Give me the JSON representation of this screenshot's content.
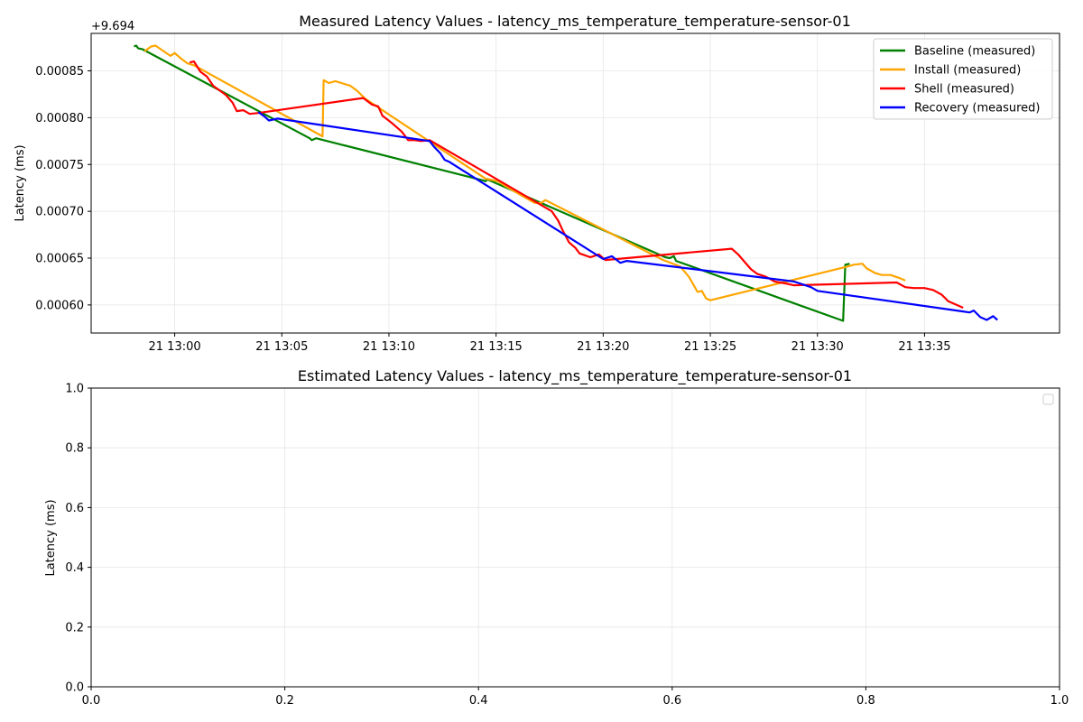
{
  "chart_data": [
    {
      "type": "line",
      "title": "Measured Latency Values - latency_ms_temperature_temperature-sensor-01",
      "ylabel": "Latency (ms)",
      "xlabel": "",
      "y_offset_label": "+9.694",
      "x_ticks": [
        "21 13:00",
        "21 13:05",
        "21 13:10",
        "21 13:15",
        "21 13:20",
        "21 13:25",
        "21 13:30",
        "21 13:35"
      ],
      "y_ticks": [
        "0.00060",
        "0.00065",
        "0.00070",
        "0.00075",
        "0.00080",
        "0.00085"
      ],
      "xlim": [
        "12:56:06",
        "13:41:18"
      ],
      "ylim": [
        0.00057,
        0.00089
      ],
      "grid": true,
      "legend_position": "top-right",
      "series": [
        {
          "name": "Baseline (measured)",
          "color": "#008000",
          "points": [
            [
              "12:58:06",
              0.000876
            ],
            [
              "12:58:12",
              0.000877
            ],
            [
              "12:58:18",
              0.000874
            ],
            [
              "12:58:30",
              0.000873
            ],
            [
              "13:06:18",
              0.000778
            ],
            [
              "13:06:24",
              0.000776
            ],
            [
              "13:06:36",
              0.000778
            ],
            [
              "13:14:24",
              0.000733
            ],
            [
              "13:14:30",
              0.000732
            ],
            [
              "13:14:36",
              0.000734
            ],
            [
              "13:22:54",
              0.000651
            ],
            [
              "13:23:06",
              0.00065
            ],
            [
              "13:23:18",
              0.000652
            ],
            [
              "13:23:24",
              0.000647
            ],
            [
              "13:31:12",
              0.000583
            ],
            [
              "13:31:18",
              0.000643
            ],
            [
              "13:31:30",
              0.000644
            ]
          ]
        },
        {
          "name": "Install (measured)",
          "color": "#ffa500",
          "points": [
            [
              "12:58:36",
              0.000871
            ],
            [
              "12:58:54",
              0.000876
            ],
            [
              "12:59:06",
              0.000877
            ],
            [
              "12:59:48",
              0.000866
            ],
            [
              "13:00:00",
              0.000869
            ],
            [
              "13:00:18",
              0.000863
            ],
            [
              "13:00:36",
              0.000858
            ],
            [
              "13:00:54",
              0.000856
            ],
            [
              "13:06:54",
              0.00078
            ],
            [
              "13:06:57",
              0.00084
            ],
            [
              "13:07:12",
              0.000837
            ],
            [
              "13:07:30",
              0.000839
            ],
            [
              "13:08:12",
              0.000834
            ],
            [
              "13:08:30",
              0.000829
            ],
            [
              "13:08:54",
              0.00082
            ],
            [
              "13:14:30",
              0.000735
            ],
            [
              "13:15:06",
              0.000732
            ],
            [
              "13:15:30",
              0.000726
            ],
            [
              "13:16:06",
              0.000718
            ],
            [
              "13:16:48",
              0.000709
            ],
            [
              "13:17:06",
              0.000709
            ],
            [
              "13:17:18",
              0.000712
            ],
            [
              "13:22:48",
              0.000648
            ],
            [
              "13:23:36",
              0.000641
            ],
            [
              "13:24:00",
              0.00063
            ],
            [
              "13:24:12",
              0.000622
            ],
            [
              "13:24:24",
              0.000614
            ],
            [
              "13:24:36",
              0.000615
            ],
            [
              "13:24:48",
              0.000607
            ],
            [
              "13:25:00",
              0.000605
            ],
            [
              "13:31:24",
              0.000641
            ],
            [
              "13:31:42",
              0.000643
            ],
            [
              "13:32:06",
              0.000644
            ],
            [
              "13:32:18",
              0.000639
            ],
            [
              "13:32:42",
              0.000634
            ],
            [
              "13:33:00",
              0.000632
            ],
            [
              "13:33:24",
              0.000632
            ],
            [
              "13:33:48",
              0.000629
            ],
            [
              "13:34:06",
              0.000626
            ]
          ]
        },
        {
          "name": "Shell (measured)",
          "color": "#ff0000",
          "points": [
            [
              "13:00:42",
              0.000859
            ],
            [
              "13:00:54",
              0.00086
            ],
            [
              "13:01:12",
              0.000849
            ],
            [
              "13:01:30",
              0.000844
            ],
            [
              "13:01:48",
              0.000834
            ],
            [
              "13:02:06",
              0.000829
            ],
            [
              "13:02:24",
              0.000824
            ],
            [
              "13:02:42",
              0.000816
            ],
            [
              "13:02:54",
              0.000807
            ],
            [
              "13:03:12",
              0.000808
            ],
            [
              "13:03:30",
              0.000804
            ],
            [
              "13:03:54",
              0.000805
            ],
            [
              "13:08:48",
              0.000821
            ],
            [
              "13:09:12",
              0.000814
            ],
            [
              "13:09:30",
              0.000812
            ],
            [
              "13:09:42",
              0.000802
            ],
            [
              "13:10:06",
              0.000795
            ],
            [
              "13:10:24",
              0.000789
            ],
            [
              "13:10:36",
              0.000785
            ],
            [
              "13:10:54",
              0.000776
            ],
            [
              "13:11:12",
              0.000776
            ],
            [
              "13:11:30",
              0.000775
            ],
            [
              "13:11:54",
              0.000776
            ],
            [
              "13:17:36",
              0.0007
            ],
            [
              "13:17:54",
              0.00069
            ],
            [
              "13:18:06",
              0.00068
            ],
            [
              "13:18:24",
              0.000667
            ],
            [
              "13:18:42",
              0.000661
            ],
            [
              "13:18:54",
              0.000655
            ],
            [
              "13:19:24",
              0.000651
            ],
            [
              "13:19:48",
              0.000654
            ],
            [
              "13:20:06",
              0.000648
            ],
            [
              "13:26:00",
              0.00066
            ],
            [
              "13:26:18",
              0.000654
            ],
            [
              "13:26:36",
              0.000646
            ],
            [
              "13:26:54",
              0.000638
            ],
            [
              "13:27:12",
              0.000633
            ],
            [
              "13:27:36",
              0.00063
            ],
            [
              "13:28:00",
              0.000625
            ],
            [
              "13:28:30",
              0.000623
            ],
            [
              "13:28:54",
              0.000621
            ],
            [
              "13:33:42",
              0.000624
            ],
            [
              "13:34:06",
              0.000619
            ],
            [
              "13:34:30",
              0.000618
            ],
            [
              "13:35:00",
              0.000618
            ],
            [
              "13:35:24",
              0.000616
            ],
            [
              "13:35:48",
              0.000611
            ],
            [
              "13:36:06",
              0.000604
            ],
            [
              "13:36:30",
              0.0006
            ],
            [
              "13:36:48",
              0.000597
            ]
          ]
        },
        {
          "name": "Recovery (measured)",
          "color": "#0000ff",
          "points": [
            [
              "13:03:54",
              0.000806
            ],
            [
              "13:04:12",
              0.000801
            ],
            [
              "13:04:24",
              0.000797
            ],
            [
              "13:04:48",
              0.000799
            ],
            [
              "13:11:54",
              0.000775
            ],
            [
              "13:12:06",
              0.000769
            ],
            [
              "13:12:24",
              0.000762
            ],
            [
              "13:12:36",
              0.000755
            ],
            [
              "13:12:48",
              0.000753
            ],
            [
              "13:20:00",
              0.000649
            ],
            [
              "13:20:24",
              0.000652
            ],
            [
              "13:20:48",
              0.000645
            ],
            [
              "13:21:06",
              0.000647
            ],
            [
              "13:28:54",
              0.000625
            ],
            [
              "13:29:18",
              0.000622
            ],
            [
              "13:29:42",
              0.000619
            ],
            [
              "13:30:00",
              0.000615
            ],
            [
              "13:36:48",
              0.000593
            ],
            [
              "13:37:06",
              0.000592
            ],
            [
              "13:37:18",
              0.000594
            ],
            [
              "13:37:36",
              0.000587
            ],
            [
              "13:37:54",
              0.000584
            ],
            [
              "13:38:12",
              0.000588
            ],
            [
              "13:38:24",
              0.000584
            ]
          ]
        }
      ]
    },
    {
      "type": "line",
      "title": "Estimated Latency Values - latency_ms_temperature_temperature-sensor-01",
      "ylabel": "Latency (ms)",
      "xlabel": "",
      "x_ticks": [
        "0.0",
        "0.2",
        "0.4",
        "0.6",
        "0.8",
        "1.0"
      ],
      "y_ticks": [
        "0.0",
        "0.2",
        "0.4",
        "0.6",
        "0.8",
        "1.0"
      ],
      "xlim": [
        0,
        1
      ],
      "ylim": [
        0,
        1
      ],
      "grid": true,
      "legend_position": "top-right",
      "series": []
    }
  ]
}
